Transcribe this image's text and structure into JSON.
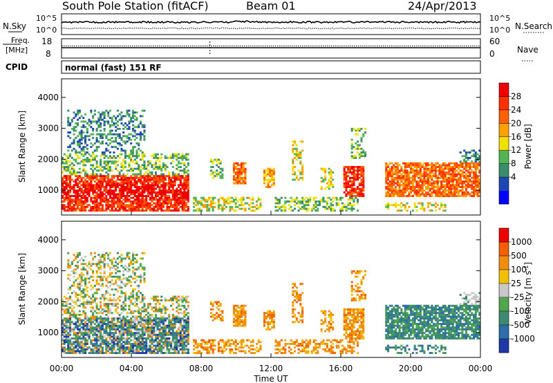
{
  "header": {
    "title": "South Pole Station (fitACF)",
    "beam": "Beam 01",
    "date": "24/Apr/2013"
  },
  "status_panels": {
    "nsky_label": "N.Sky",
    "nsearch_label": "N.Search",
    "noise_ticks_left": [
      "10^5",
      "10^0"
    ],
    "noise_ticks_right": [
      "10^5",
      "10^0"
    ],
    "freq_label_1": "Freq.",
    "freq_label_2": "[MHz]",
    "freq_ticks": [
      "18",
      "8"
    ],
    "nave_label": "Nave",
    "nave_ticks": [
      "60",
      "0"
    ],
    "cpid_label": "CPID",
    "cpid_value": "normal (fast) 151 RF"
  },
  "colors": {
    "power_scale": [
      "#0000ff",
      "#1e46b4",
      "#3a8c6c",
      "#52b454",
      "#f0e000",
      "#ffa000",
      "#ff6000",
      "#ff3000",
      "#ee0000"
    ],
    "velocity_scale": [
      "#1f3aa6",
      "#2d6ea8",
      "#3d8a72",
      "#4fa64e",
      "#c8c8c8",
      "#f0c000",
      "#f08c10",
      "#f06000",
      "#ee0000"
    ]
  },
  "chart_data": [
    {
      "type": "heatmap",
      "panel": "power",
      "ylabel": "Slant Range [km]",
      "ylim": [
        200,
        4600
      ],
      "xlim": [
        "00:00",
        "24:00"
      ],
      "y_ticks": [
        "4000",
        "3000",
        "2000",
        "1000"
      ],
      "colorbar_label": "Power [dB]",
      "colorbar_ticks": [
        "28",
        "24",
        "20",
        "16",
        "12",
        "8",
        "4"
      ]
    },
    {
      "type": "heatmap",
      "panel": "velocity",
      "ylabel": "Slant Range [km]",
      "xlabel": "Time UT",
      "ylim": [
        200,
        4600
      ],
      "xlim": [
        "00:00",
        "24:00"
      ],
      "y_ticks": [
        "4000",
        "3000",
        "2000",
        "1000"
      ],
      "x_ticks": [
        "00:00",
        "04:00",
        "08:00",
        "12:00",
        "16:00",
        "20:00",
        "00:00"
      ],
      "colorbar_label": "Velocity [m s",
      "colorbar_label_sup": "-1",
      "colorbar_ticks": [
        "1000",
        "500",
        "100",
        "25",
        "-25",
        "-100",
        "-500",
        "-1000"
      ]
    }
  ]
}
